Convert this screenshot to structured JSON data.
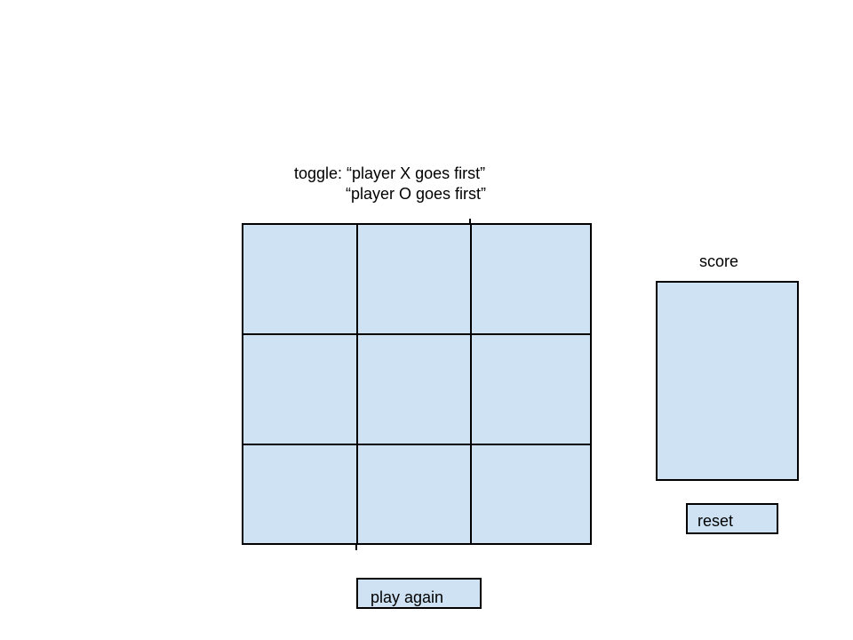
{
  "toggle": {
    "label_prefix": "toggle: ",
    "option_x": "“player X goes first”",
    "option_o": "“player O goes first”"
  },
  "board": {
    "rows": 3,
    "cols": 3,
    "fill_color": "#cfe2f3",
    "line_color": "#000000"
  },
  "score": {
    "label": "score"
  },
  "buttons": {
    "reset_label": "reset",
    "play_again_label": "play again"
  }
}
